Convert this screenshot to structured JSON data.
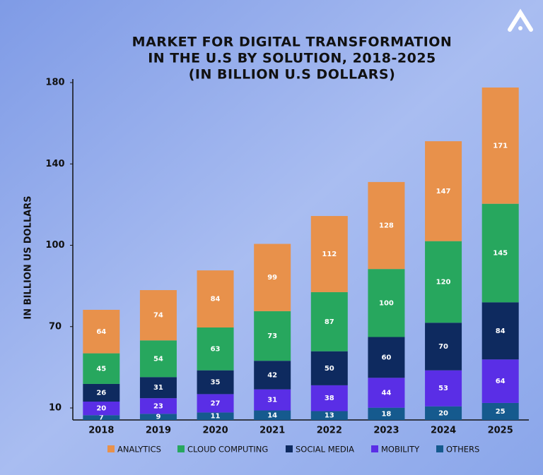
{
  "chart_data": {
    "type": "stacked-bar",
    "title": [
      "MARKET FOR DIGITAL TRANSFORMATION",
      "IN THE U.S BY SOLUTION, 2018-2025",
      "(IN BILLION U.S DOLLARS)"
    ],
    "y_label": "IN BILLION US DOLLARS",
    "categories": [
      "2018",
      "2019",
      "2020",
      "2021",
      "2022",
      "2023",
      "2024",
      "2025"
    ],
    "yticks": [
      10,
      70,
      100,
      140,
      180
    ],
    "series": [
      {
        "name": "ANALYTICS",
        "color": "#e8914b",
        "values": [
          64,
          74,
          84,
          99,
          112,
          128,
          147,
          171
        ]
      },
      {
        "name": "CLOUD COMPUTING",
        "color": "#27a75e",
        "values": [
          45,
          54,
          63,
          73,
          87,
          100,
          120,
          145
        ]
      },
      {
        "name": "SOCIAL MEDIA",
        "color": "#0e2a5f",
        "values": [
          26,
          31,
          35,
          42,
          50,
          60,
          70,
          84
        ]
      },
      {
        "name": "MOBILITY",
        "color": "#5a2ee6",
        "values": [
          20,
          23,
          27,
          31,
          38,
          44,
          53,
          64
        ]
      },
      {
        "name": "OTHERS",
        "color": "#155a8e",
        "values": [
          7,
          9,
          11,
          14,
          13,
          18,
          20,
          25
        ]
      }
    ]
  }
}
